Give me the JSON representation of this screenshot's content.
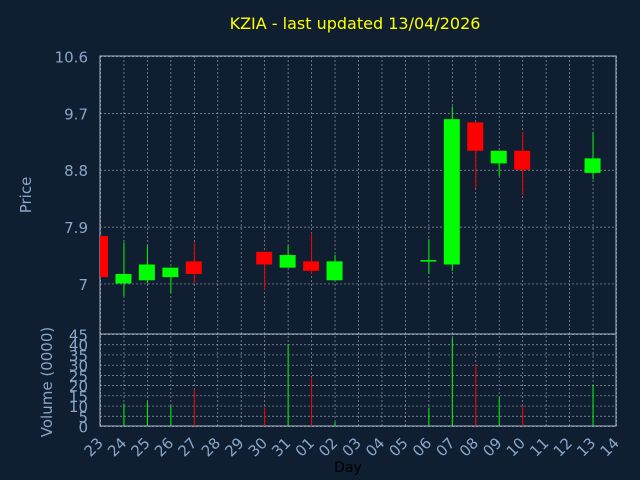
{
  "chart_data": {
    "type": "candlestick",
    "title": "KZIA - last updated 13/04/2026",
    "xlabel": "Day",
    "colors": {
      "background": "#0f1e30",
      "axis_text": "#8aa6c8",
      "title": "#ffff00",
      "up": "#00ff00",
      "down": "#ff0000",
      "grid": "#b0b8c8"
    },
    "x_ticks": [
      "23",
      "24",
      "25",
      "26",
      "27",
      "28",
      "29",
      "30",
      "31",
      "01",
      "02",
      "03",
      "04",
      "05",
      "06",
      "07",
      "08",
      "09",
      "10",
      "11",
      "12",
      "13",
      "14"
    ],
    "price": {
      "ylabel": "Price",
      "ylim": [
        6.2,
        10.6
      ],
      "yticks": [
        "10.6",
        "9.7",
        "8.8",
        "7.9",
        "7"
      ],
      "ytick_values": [
        10.6,
        9.7,
        8.8,
        7.9,
        7.0
      ],
      "grid": true
    },
    "volume": {
      "ylabel": "Volume (0000)",
      "ylim": [
        0,
        45
      ],
      "yticks": [
        "45",
        "40",
        "35",
        "30",
        "25",
        "20",
        "15",
        "10",
        "5",
        "0"
      ],
      "ytick_values": [
        45,
        40,
        35,
        30,
        25,
        20,
        15,
        10,
        5,
        0
      ],
      "grid": true
    },
    "candles": [
      {
        "day": "23",
        "open": 7.75,
        "high": 7.75,
        "low": 7.1,
        "close": 7.1,
        "volume": 0
      },
      {
        "day": "24",
        "open": 7.0,
        "high": 7.65,
        "low": 6.8,
        "close": 7.15,
        "volume": 11
      },
      {
        "day": "25",
        "open": 7.05,
        "high": 7.6,
        "low": 7.0,
        "close": 7.3,
        "volume": 12
      },
      {
        "day": "26",
        "open": 7.1,
        "high": 7.25,
        "low": 6.85,
        "close": 7.25,
        "volume": 10
      },
      {
        "day": "27",
        "open": 7.35,
        "high": 7.65,
        "low": 7.0,
        "close": 7.15,
        "volume": 18
      },
      {
        "day": "30",
        "open": 7.5,
        "high": 7.5,
        "low": 6.9,
        "close": 7.3,
        "volume": 9
      },
      {
        "day": "31",
        "open": 7.25,
        "high": 7.6,
        "low": 7.25,
        "close": 7.45,
        "volume": 40
      },
      {
        "day": "01",
        "open": 7.35,
        "high": 7.8,
        "low": 7.15,
        "close": 7.2,
        "volume": 24
      },
      {
        "day": "02",
        "open": 7.05,
        "high": 7.45,
        "low": 7.05,
        "close": 7.35,
        "volume": 2
      },
      {
        "day": "06",
        "open": 7.35,
        "high": 7.7,
        "low": 7.15,
        "close": 7.37,
        "volume": 9
      },
      {
        "day": "07",
        "open": 7.3,
        "high": 9.8,
        "low": 7.2,
        "close": 9.6,
        "volume": 43
      },
      {
        "day": "08",
        "open": 9.55,
        "high": 9.55,
        "low": 8.5,
        "close": 9.1,
        "volume": 30
      },
      {
        "day": "09",
        "open": 8.9,
        "high": 9.1,
        "low": 8.7,
        "close": 9.1,
        "volume": 14
      },
      {
        "day": "10",
        "open": 9.1,
        "high": 9.4,
        "low": 8.4,
        "close": 8.8,
        "volume": 10
      },
      {
        "day": "13",
        "open": 8.75,
        "high": 9.4,
        "low": 8.65,
        "close": 8.98,
        "volume": 20
      }
    ]
  }
}
